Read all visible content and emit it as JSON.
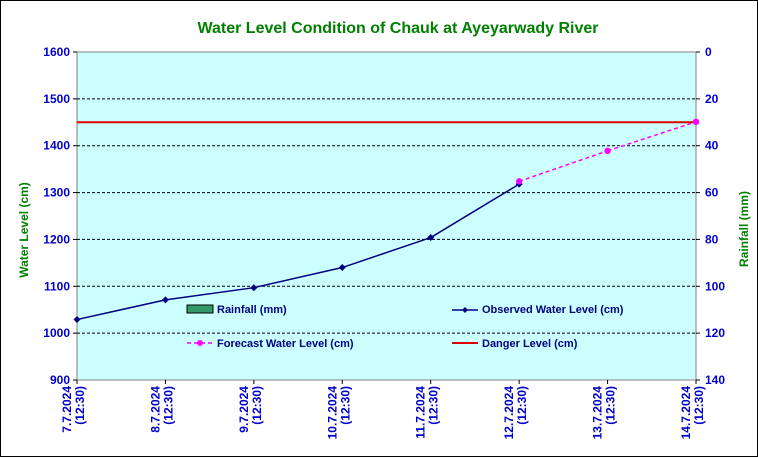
{
  "chart_data": {
    "type": "line",
    "title": "Water Level Condition of Chauk at Ayeyarwady River",
    "ylabel": "Water Level (cm)",
    "y2label": "Rainfall (mm)",
    "ylim": [
      900,
      1600
    ],
    "y2lim": [
      0,
      140
    ],
    "y2_reversed": true,
    "yticks": [
      "900",
      "1000",
      "1100",
      "1200",
      "1300",
      "1400",
      "1500",
      "1600"
    ],
    "y2ticks": [
      "0",
      "20",
      "40",
      "60",
      "80",
      "100",
      "120",
      "140"
    ],
    "categories": [
      [
        "7.7.2024",
        "(12:30)"
      ],
      [
        "8.7.2024",
        "(12:30)"
      ],
      [
        "9.7.2024",
        "(12:30)"
      ],
      [
        "10.7.2024",
        "(12:30)"
      ],
      [
        "11.7.2024",
        "(12:30)"
      ],
      [
        "12.7.2024",
        "(12:30)"
      ],
      [
        "13.7.2024",
        "(12:30)"
      ],
      [
        "14.7.2024",
        "(12:30)"
      ]
    ],
    "grid": true,
    "plot_background": "#ccffff",
    "series": {
      "observed": {
        "name": "Observed Water Level (cm)",
        "color": "#000080",
        "values": [
          1029,
          1071,
          1097,
          1140,
          1204,
          1318,
          null,
          null
        ]
      },
      "forecast": {
        "name": "Forecast Water Level (cm)",
        "color": "#ff00ff",
        "values": [
          null,
          null,
          null,
          null,
          null,
          1324,
          1389,
          1451
        ]
      },
      "danger": {
        "name": "Danger Level (cm)",
        "color": "#dd0000",
        "value": 1450
      },
      "rainfall": {
        "name": "Rainfall (mm)",
        "color": "#339966",
        "values": [
          0,
          0,
          0,
          0,
          0,
          0,
          0,
          0
        ]
      }
    },
    "colors": {
      "title": "#008000",
      "axis_title": "#008000",
      "tick": "#0000cc"
    }
  }
}
